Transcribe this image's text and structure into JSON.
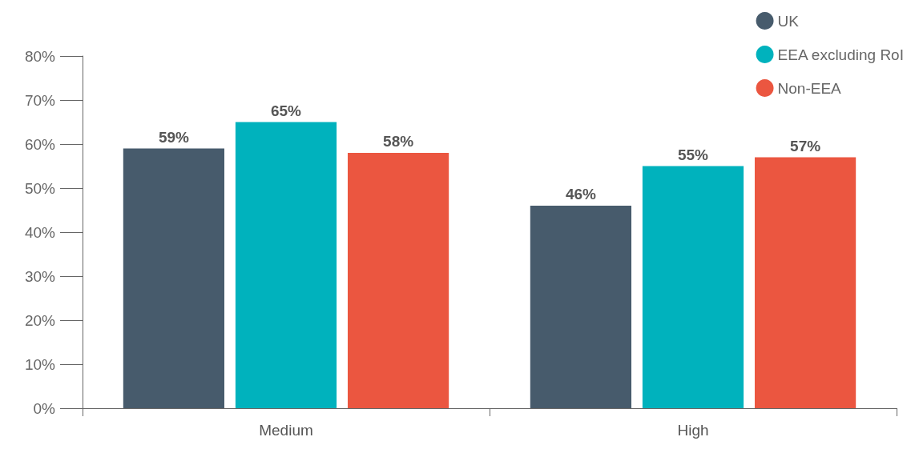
{
  "chart_data": {
    "type": "bar",
    "categories": [
      "Medium",
      "High"
    ],
    "series": [
      {
        "name": "UK",
        "color": "#475b6c",
        "values": [
          59,
          46
        ]
      },
      {
        "name": "EEA excluding RoI",
        "color": "#00b2bd",
        "values": [
          65,
          55
        ]
      },
      {
        "name": "Non-EEA",
        "color": "#eb5640",
        "values": [
          58,
          57
        ]
      }
    ],
    "ylim": [
      0,
      80
    ],
    "yticks": [
      {
        "value": 0,
        "label": "0%"
      },
      {
        "value": 10,
        "label": "10%"
      },
      {
        "value": 20,
        "label": "20%"
      },
      {
        "value": 30,
        "label": "30%"
      },
      {
        "value": 40,
        "label": "40%"
      },
      {
        "value": 50,
        "label": "50%"
      },
      {
        "value": 60,
        "label": "60%"
      },
      {
        "value": 70,
        "label": "70%"
      },
      {
        "value": 80,
        "label": "80%"
      }
    ],
    "value_labels": [
      [
        "59%",
        "46%"
      ],
      [
        "65%",
        "55%"
      ],
      [
        "58%",
        "57%"
      ]
    ],
    "grid": false,
    "legend": "top right"
  }
}
